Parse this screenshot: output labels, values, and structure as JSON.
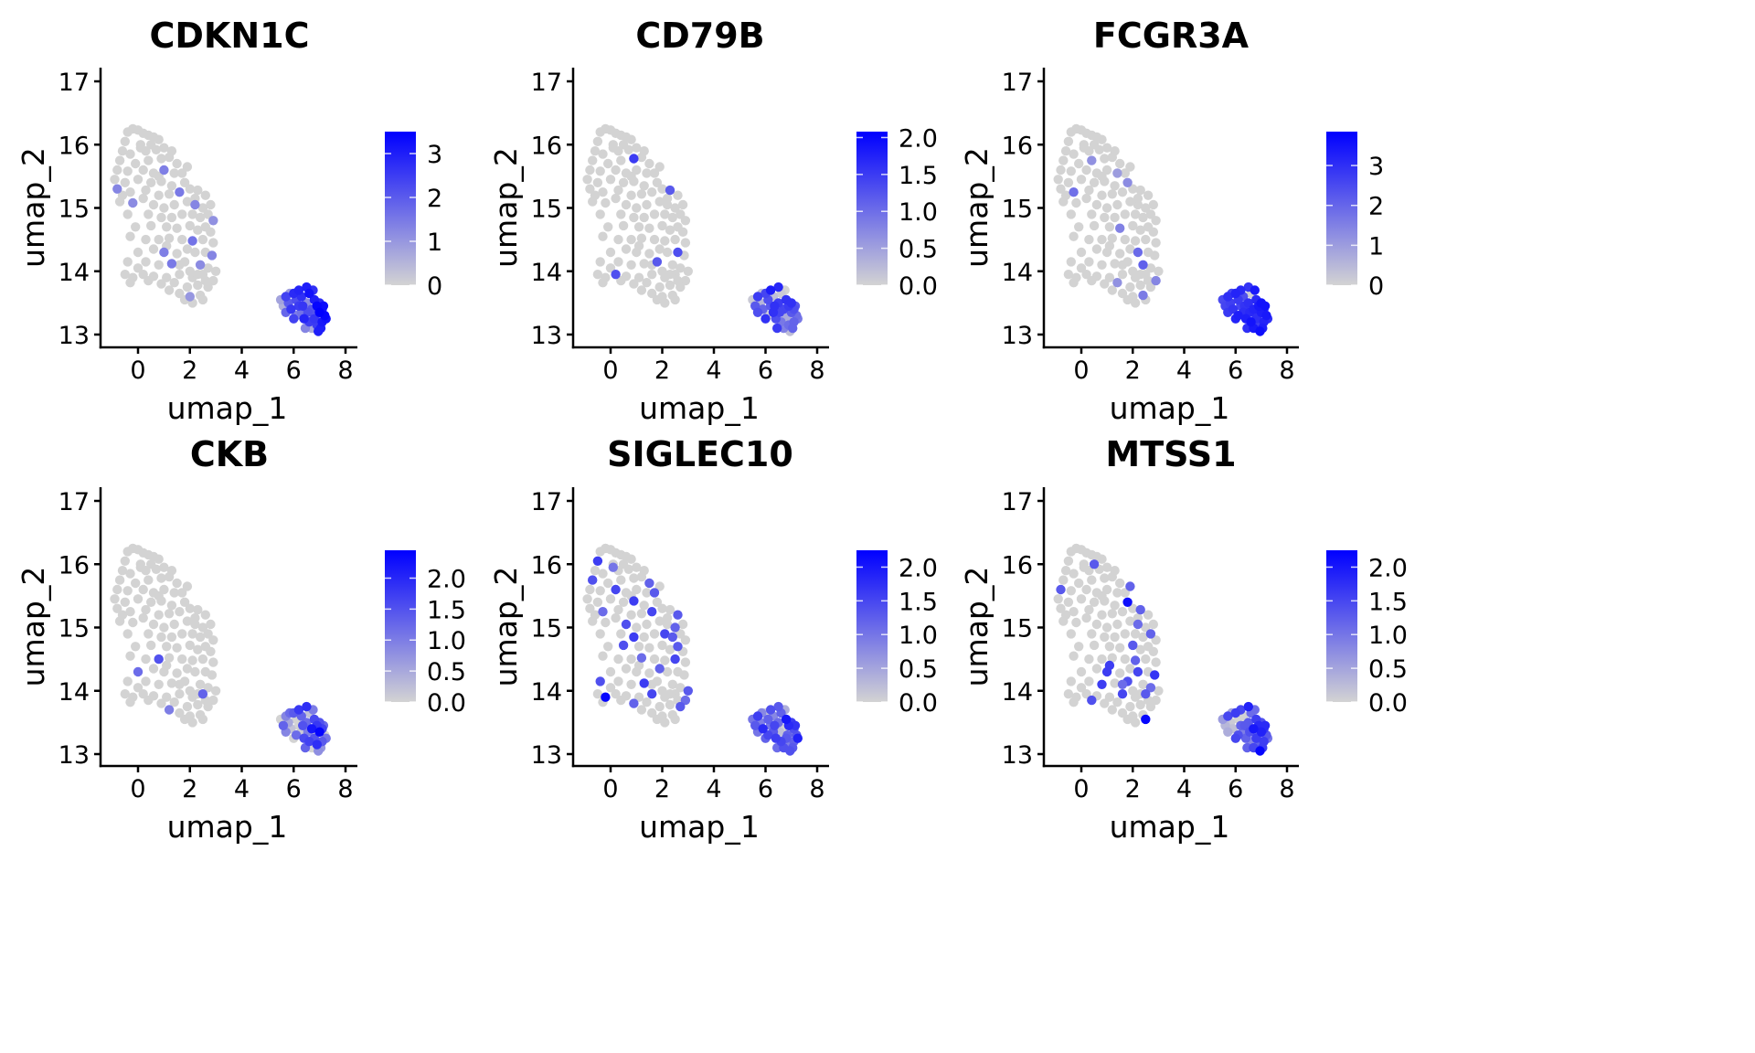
{
  "chart_data": {
    "type": "scatter",
    "layout": "2x3 feature plots",
    "xlabel": "umap_1",
    "ylabel": "umap_2",
    "xlim": [
      -1.45,
      8.45
    ],
    "ylim": [
      12.8,
      17.2
    ],
    "xticks": [
      0,
      2,
      4,
      6,
      8
    ],
    "yticks": [
      13,
      14,
      15,
      16,
      17
    ],
    "grid": false,
    "legend_position": "right",
    "color_low": "#d3d3d3",
    "color_high": "#0000ff",
    "cells": {
      "cluster_a": [
        [
          -0.4,
          16.2
        ],
        [
          -0.2,
          16.25
        ],
        [
          0.0,
          16.23
        ],
        [
          0.2,
          16.18
        ],
        [
          0.4,
          16.15
        ],
        [
          0.6,
          16.12
        ],
        [
          0.8,
          16.08
        ],
        [
          -0.5,
          16.05
        ],
        [
          0.1,
          16.0
        ],
        [
          0.5,
          16.0
        ],
        [
          -0.6,
          15.9
        ],
        [
          -0.3,
          15.85
        ],
        [
          0.3,
          15.9
        ],
        [
          0.7,
          15.92
        ],
        [
          1.0,
          15.95
        ],
        [
          1.3,
          15.9
        ],
        [
          -0.7,
          15.75
        ],
        [
          -0.1,
          15.7
        ],
        [
          0.4,
          15.75
        ],
        [
          0.9,
          15.78
        ],
        [
          1.2,
          15.8
        ],
        [
          1.5,
          15.7
        ],
        [
          -0.8,
          15.6
        ],
        [
          -0.4,
          15.58
        ],
        [
          0.2,
          15.6
        ],
        [
          0.6,
          15.55
        ],
        [
          1.0,
          15.6
        ],
        [
          1.4,
          15.55
        ],
        [
          1.7,
          15.55
        ],
        [
          -0.9,
          15.45
        ],
        [
          -0.5,
          15.4
        ],
        [
          0.0,
          15.45
        ],
        [
          0.5,
          15.4
        ],
        [
          0.9,
          15.42
        ],
        [
          1.3,
          15.35
        ],
        [
          1.8,
          15.4
        ],
        [
          -0.8,
          15.3
        ],
        [
          -0.3,
          15.25
        ],
        [
          0.3,
          15.28
        ],
        [
          0.8,
          15.2
        ],
        [
          1.2,
          15.22
        ],
        [
          1.6,
          15.25
        ],
        [
          2.0,
          15.3
        ],
        [
          2.3,
          15.28
        ],
        [
          2.6,
          15.2
        ],
        [
          -0.7,
          15.1
        ],
        [
          -0.2,
          15.08
        ],
        [
          0.6,
          15.05
        ],
        [
          1.0,
          15.0
        ],
        [
          1.4,
          15.05
        ],
        [
          1.9,
          15.1
        ],
        [
          2.2,
          15.05
        ],
        [
          2.5,
          15.0
        ],
        [
          2.8,
          15.05
        ],
        [
          -0.4,
          14.9
        ],
        [
          0.4,
          14.9
        ],
        [
          0.9,
          14.85
        ],
        [
          1.3,
          14.85
        ],
        [
          1.7,
          14.9
        ],
        [
          2.1,
          14.9
        ],
        [
          2.4,
          14.85
        ],
        [
          2.7,
          14.9
        ],
        [
          2.9,
          14.8
        ],
        [
          -0.1,
          14.7
        ],
        [
          0.5,
          14.72
        ],
        [
          1.1,
          14.7
        ],
        [
          1.5,
          14.68
        ],
        [
          2.0,
          14.72
        ],
        [
          2.3,
          14.65
        ],
        [
          2.6,
          14.7
        ],
        [
          2.8,
          14.62
        ],
        [
          -0.3,
          14.55
        ],
        [
          0.3,
          14.5
        ],
        [
          0.8,
          14.5
        ],
        [
          1.2,
          14.52
        ],
        [
          1.7,
          14.5
        ],
        [
          2.1,
          14.48
        ],
        [
          2.5,
          14.5
        ],
        [
          2.9,
          14.45
        ],
        [
          0.0,
          14.3
        ],
        [
          0.6,
          14.35
        ],
        [
          1.0,
          14.3
        ],
        [
          1.5,
          14.28
        ],
        [
          1.9,
          14.35
        ],
        [
          2.2,
          14.3
        ],
        [
          2.6,
          14.3
        ],
        [
          2.85,
          14.25
        ],
        [
          -0.4,
          14.15
        ],
        [
          0.3,
          14.15
        ],
        [
          0.8,
          14.1
        ],
        [
          1.3,
          14.12
        ],
        [
          1.8,
          14.15
        ],
        [
          2.4,
          14.1
        ],
        [
          2.7,
          14.05
        ],
        [
          3.0,
          14.0
        ],
        [
          -0.5,
          13.95
        ],
        [
          -0.2,
          13.9
        ],
        [
          0.2,
          13.95
        ],
        [
          0.6,
          13.92
        ],
        [
          1.1,
          13.9
        ],
        [
          1.6,
          13.95
        ],
        [
          2.1,
          13.9
        ],
        [
          2.5,
          13.95
        ],
        [
          2.9,
          13.85
        ],
        [
          -0.3,
          13.82
        ],
        [
          0.4,
          13.85
        ],
        [
          0.9,
          13.8
        ],
        [
          1.4,
          13.82
        ],
        [
          1.9,
          13.75
        ],
        [
          2.3,
          13.78
        ],
        [
          2.7,
          13.75
        ],
        [
          1.2,
          13.7
        ],
        [
          1.6,
          13.65
        ],
        [
          2.0,
          13.6
        ],
        [
          2.4,
          13.62
        ],
        [
          1.8,
          13.55
        ],
        [
          2.1,
          13.5
        ],
        [
          2.5,
          13.55
        ],
        [
          0.1,
          15.95
        ],
        [
          0.8,
          15.5
        ],
        [
          1.9,
          15.65
        ],
        [
          2.2,
          15.15
        ],
        [
          1.1,
          14.4
        ],
        [
          1.6,
          14.1
        ],
        [
          2.0,
          14.0
        ],
        [
          2.3,
          13.95
        ],
        [
          2.6,
          13.85
        ],
        [
          0.0,
          14.05
        ],
        [
          -0.6,
          15.2
        ],
        [
          0.2,
          15.15
        ]
      ],
      "cluster_b": [
        [
          5.5,
          13.55
        ],
        [
          5.6,
          13.45
        ],
        [
          5.7,
          13.6
        ],
        [
          5.8,
          13.5
        ],
        [
          5.9,
          13.4
        ],
        [
          6.0,
          13.65
        ],
        [
          6.1,
          13.55
        ],
        [
          6.1,
          13.3
        ],
        [
          6.2,
          13.45
        ],
        [
          6.2,
          13.7
        ],
        [
          6.3,
          13.35
        ],
        [
          6.3,
          13.6
        ],
        [
          6.4,
          13.25
        ],
        [
          6.5,
          13.5
        ],
        [
          6.5,
          13.75
        ],
        [
          6.6,
          13.2
        ],
        [
          6.6,
          13.65
        ],
        [
          6.7,
          13.4
        ],
        [
          6.7,
          13.1
        ],
        [
          6.8,
          13.55
        ],
        [
          6.8,
          13.25
        ],
        [
          6.9,
          13.45
        ],
        [
          6.9,
          13.15
        ],
        [
          6.95,
          13.05
        ],
        [
          7.0,
          13.35
        ],
        [
          7.0,
          13.5
        ],
        [
          7.1,
          13.2
        ],
        [
          7.1,
          13.4
        ],
        [
          7.2,
          13.3
        ],
        [
          7.25,
          13.25
        ],
        [
          5.7,
          13.35
        ],
        [
          6.0,
          13.25
        ],
        [
          6.45,
          13.1
        ],
        [
          6.75,
          13.7
        ],
        [
          7.05,
          13.1
        ],
        [
          5.85,
          13.65
        ],
        [
          6.35,
          13.45
        ],
        [
          6.55,
          13.35
        ],
        [
          7.15,
          13.45
        ],
        [
          6.85,
          13.3
        ]
      ]
    },
    "panels": [
      {
        "gene": "CDKN1C",
        "colorbar": {
          "min": 0,
          "max": 3.5,
          "ticks": [
            0,
            1,
            2,
            3
          ],
          "tick_labels": [
            "0",
            "1",
            "2",
            "3"
          ]
        },
        "expr_a": {
          "26": 1.4,
          "36": 1.3,
          "41": 1.5,
          "46": 1.2,
          "51": 1.3,
          "62": 1.1,
          "76": 1.6,
          "81": 1.4,
          "86": 1.3,
          "90": 1.5,
          "92": 1.2,
          "113": 1.0
        },
        "expr_b": [
          0.8,
          0.6,
          2.4,
          2.0,
          2.6,
          2.8,
          2.2,
          1.4,
          2.5,
          2.9,
          1.6,
          2.7,
          2.9,
          1.2,
          3.0,
          2.5,
          3.2,
          2.1,
          0.7,
          3.0,
          2.6,
          3.4,
          2.5,
          3.0,
          3.5,
          2.8,
          3.1,
          2.9,
          3.4,
          3.2,
          1.8,
          2.4,
          1.3,
          2.7,
          3.0,
          0.9,
          2.6,
          2.2,
          3.3,
          1.9
        ]
      },
      {
        "gene": "CD79B",
        "colorbar": {
          "min": 0,
          "max": 2.08,
          "ticks": [
            0,
            0.5,
            1,
            1.5,
            2
          ],
          "tick_labels": [
            "0.0",
            "0.5",
            "1.0",
            "1.5",
            "2.0"
          ]
        },
        "expr_a": {
          "19": 1.5,
          "43": 1.2,
          "85": 1.3,
          "91": 1.2,
          "97": 1.3
        },
        "expr_b": [
          0.1,
          1.2,
          1.5,
          0.3,
          1.1,
          1.4,
          1.3,
          0.0,
          1.2,
          1.8,
          1.6,
          0.2,
          1.3,
          1.5,
          1.7,
          0.9,
          0.1,
          1.4,
          0.8,
          1.6,
          0.3,
          1.5,
          1.0,
          0.2,
          1.2,
          1.6,
          1.1,
          1.3,
          1.0,
          0.9,
          1.3,
          1.6,
          1.5,
          0.0,
          1.1,
          0.2,
          1.6,
          1.4,
          1.2,
          0.4
        ]
      },
      {
        "gene": "FCGR3A",
        "colorbar": {
          "min": 0,
          "max": 3.85,
          "ticks": [
            0,
            1,
            2,
            3
          ],
          "tick_labels": [
            "0",
            "1",
            "2",
            "3"
          ]
        },
        "expr_a": {
          "18": 1.2,
          "27": 1.0,
          "35": 1.3,
          "37": 1.8,
          "66": 1.5,
          "84": 1.9,
          "92": 2.1,
          "103": 1.4,
          "107": 1.2,
          "114": 1.6
        },
        "expr_b": [
          2.5,
          2.6,
          3.0,
          2.7,
          2.9,
          3.2,
          2.8,
          3.3,
          2.6,
          3.1,
          3.0,
          2.4,
          3.3,
          3.0,
          2.9,
          3.5,
          0.1,
          3.2,
          3.4,
          3.1,
          3.0,
          3.4,
          2.7,
          3.6,
          3.3,
          3.5,
          3.2,
          3.1,
          3.4,
          3.0,
          2.8,
          3.2,
          3.0,
          3.4,
          3.3,
          2.6,
          2.9,
          3.1,
          3.5,
          3.0
        ]
      },
      {
        "gene": "CKB",
        "colorbar": {
          "min": 0,
          "max": 2.45,
          "ticks": [
            0,
            0.5,
            1,
            1.5,
            2
          ],
          "tick_labels": [
            "0.0",
            "0.5",
            "1.0",
            "1.5",
            "2.0"
          ]
        },
        "expr_a": {
          "73": 1.5,
          "79": 1.2,
          "102": 1.3,
          "111": 1.0
        },
        "expr_b": [
          0.0,
          1.3,
          0.9,
          0.5,
          0.2,
          1.4,
          0.0,
          1.2,
          0.0,
          1.8,
          0.1,
          1.3,
          1.6,
          1.2,
          1.9,
          1.7,
          0.2,
          2.2,
          0.0,
          1.6,
          1.5,
          1.8,
          1.9,
          0.8,
          2.4,
          1.5,
          1.4,
          1.7,
          0.0,
          1.1,
          0.9,
          0.0,
          1.3,
          1.0,
          0.7,
          1.2,
          1.5,
          1.0,
          1.2,
          0.0
        ]
      },
      {
        "gene": "SIGLEC10",
        "colorbar": {
          "min": 0,
          "max": 2.25,
          "ticks": [
            0,
            0.5,
            1,
            1.5,
            2
          ],
          "tick_labels": [
            "0.0",
            "0.5",
            "1.0",
            "1.5",
            "2.0"
          ]
        },
        "expr_a": {
          "7": 1.6,
          "16": 1.4,
          "21": 1.2,
          "24": 1.5,
          "28": 1.3,
          "33": 1.6,
          "37": 1.1,
          "41": 1.5,
          "44": 1.3,
          "47": 1.4,
          "52": 1.2,
          "56": 1.6,
          "59": 1.5,
          "60": 1.3,
          "64": 1.4,
          "69": 1.3,
          "74": 1.1,
          "77": 1.5,
          "83": 1.2,
          "87": 1.4,
          "90": 1.6,
          "94": 1.3,
          "96": 2.2,
          "100": 1.5,
          "103": 1.1,
          "106": 1.2,
          "110": 1.3,
          "118": 1.0
        },
        "expr_b": [
          1.0,
          1.3,
          1.6,
          0.9,
          1.8,
          0.1,
          1.2,
          1.5,
          1.0,
          1.4,
          1.3,
          0.8,
          1.6,
          1.1,
          1.3,
          1.5,
          1.2,
          0.0,
          1.4,
          2.0,
          1.3,
          1.8,
          0.9,
          1.4,
          0.1,
          1.6,
          1.2,
          1.4,
          1.3,
          1.9,
          1.0,
          1.2,
          1.1,
          0.4,
          1.3,
          0.8,
          1.5,
          0.2,
          1.7,
          1.2
        ]
      },
      {
        "gene": "MTSS1",
        "colorbar": {
          "min": 0,
          "max": 2.25,
          "ticks": [
            0,
            0.5,
            1,
            1.5,
            2
          ],
          "tick_labels": [
            "0.0",
            "0.5",
            "1.0",
            "1.5",
            "2.0"
          ]
        },
        "expr_a": {
          "9": 1.3,
          "22": 1.3,
          "35": 2.1,
          "43": 1.2,
          "51": 1.1,
          "61": 1.2,
          "67": 1.3,
          "76": 1.2,
          "81": 1.6,
          "84": 1.5,
          "86": 1.7,
          "89": 1.6,
          "91": 1.4,
          "93": 1.1,
          "100": 1.5,
          "102": 1.3,
          "105": 1.4,
          "117": 2.2,
          "120": 1.2,
          "122": 1.6,
          "123": 1.1
        },
        "expr_b": [
          0.6,
          0.3,
          1.5,
          0.1,
          0.2,
          1.6,
          0.0,
          1.4,
          1.2,
          1.5,
          0.9,
          0.0,
          1.2,
          1.3,
          1.9,
          0.8,
          1.1,
          2.0,
          1.5,
          1.6,
          1.6,
          1.8,
          1.2,
          2.2,
          1.9,
          1.4,
          1.6,
          1.7,
          1.3,
          1.0,
          0.4,
          1.5,
          1.2,
          1.1,
          1.6,
          0.5,
          1.3,
          1.4,
          1.8,
          1.2
        ]
      }
    ]
  }
}
